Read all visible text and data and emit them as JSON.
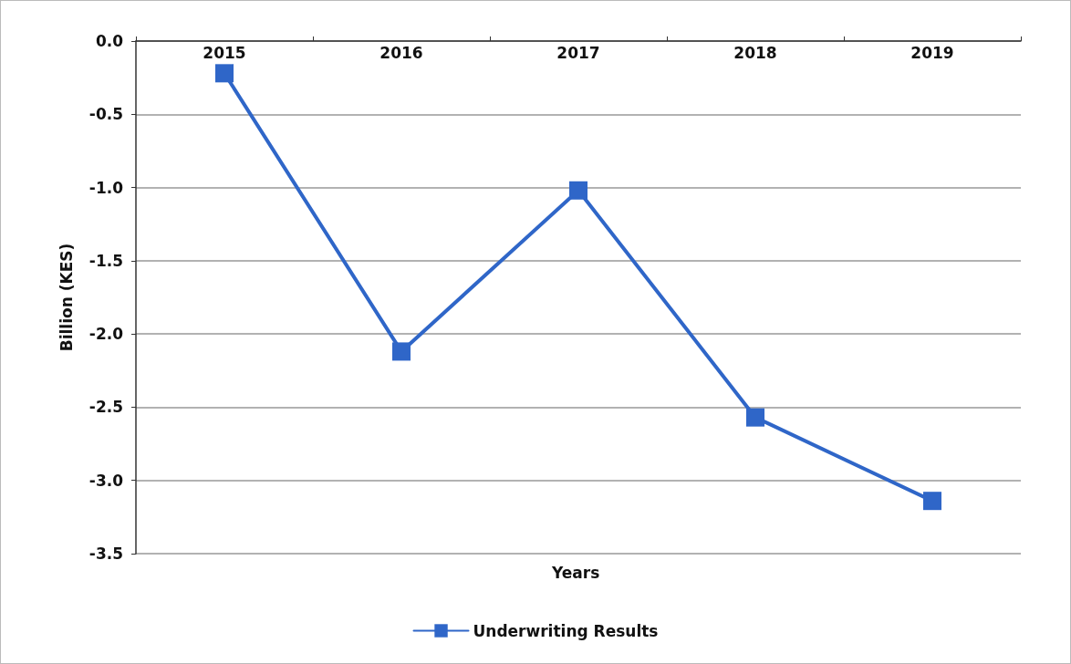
{
  "chart_data": {
    "type": "line",
    "xlabel": "Years",
    "ylabel": "Billion (KES)",
    "categories": [
      "2015",
      "2016",
      "2017",
      "2018",
      "2019"
    ],
    "series": [
      {
        "name": "Underwriting Results",
        "color": "#2f66c8",
        "values": [
          -0.22,
          -2.12,
          -1.02,
          -2.57,
          -3.14
        ]
      }
    ],
    "ylim": [
      -3.5,
      0
    ],
    "yticks": [
      {
        "value": -3.5,
        "label": "-3.5"
      },
      {
        "value": -3,
        "label": "-3.0"
      },
      {
        "value": -2.5,
        "label": "-2.5"
      },
      {
        "value": -2,
        "label": "-2.0"
      },
      {
        "value": -1.5,
        "label": "-1.5"
      },
      {
        "value": -1,
        "label": "-1.0"
      },
      {
        "value": -0.5,
        "label": "-0.5"
      },
      {
        "value": 0,
        "label": "0.0"
      }
    ],
    "grid": "y",
    "legend": "bottom",
    "marker": "square",
    "line_style": "solid"
  }
}
